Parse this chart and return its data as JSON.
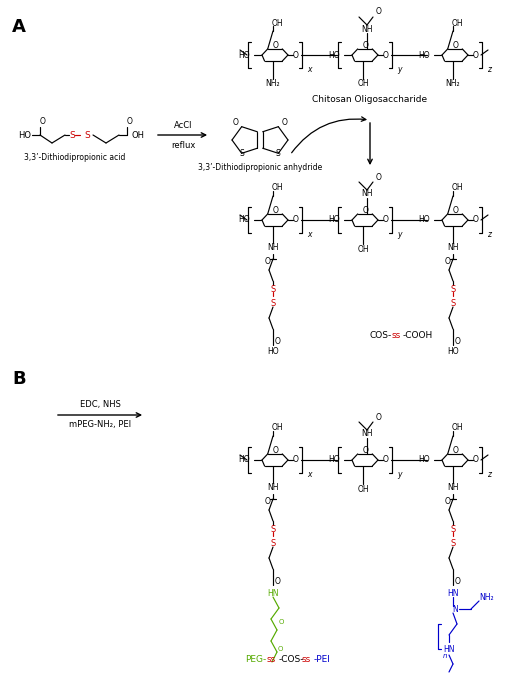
{
  "fig_width": 5.29,
  "fig_height": 6.84,
  "dpi": 100,
  "bg": "#ffffff",
  "black": "#000000",
  "red": "#cc0000",
  "green": "#55aa00",
  "blue": "#0000cc",
  "section_A": "A",
  "section_B": "B",
  "label_acid": "3,3’-Dithiodipropionic acid",
  "label_anhydride": "3,3’-Dithiodipropionic anhydride",
  "label_cos": "Chitosan Oligosaccharide",
  "label_cos_ss_cooh_1": "COS-",
  "label_cos_ss_cooh_2": "ss",
  "label_cos_ss_cooh_3": "-COOH",
  "label_peg_1": "PEG-",
  "label_peg_2": "ss",
  "label_peg_3": "-COS-",
  "label_peg_4": "ss",
  "label_peg_5": "-PEI",
  "acccl": "AcCl",
  "reflux": "reflux",
  "edc": "EDC, NHS",
  "peg_nh2": "mPEG-NH₂, PEI"
}
